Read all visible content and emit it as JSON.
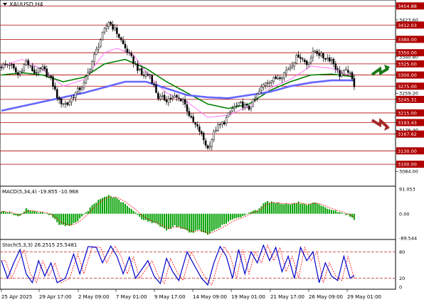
{
  "symbol_label": "XAUUSD,H4",
  "colors": {
    "bull_candle": "#ffffff",
    "bear_candle": "#000000",
    "level_line": "#b00000",
    "level_tag": "#b00000",
    "ma_fast": "#ff66ff",
    "ma_mid": "#008000",
    "ma_slow": "#6666ff",
    "macd_hist": "#00a000",
    "macd_signal": "#ff0000",
    "stoch_main": "#0000cc",
    "stoch_signal": "#ff0000",
    "arrow_up": "#1a7a1a",
    "arrow_down": "#a52a2a"
  },
  "icons": {
    "up_arrow": "zigzag-up-arrow-icon",
    "down_arrow": "zigzag-down-arrow-icon"
  },
  "chart_data": [
    {
      "type": "candlestick",
      "title": "XAUUSD,H4",
      "ylim": [
        3054.0,
        3465.0
      ],
      "price_ticks": [
        3454.88,
        3423.6,
        3412.03,
        3380.0,
        3350.0,
        3340.8,
        3325.0,
        3300.0,
        3275.0,
        3259.2,
        3245.31,
        3215.0,
        3193.43,
        3176.4,
        3167.62,
        3130.0,
        3100.0,
        3084.0
      ],
      "levels": [
        {
          "price": 3454.88,
          "label": "3454.88"
        },
        {
          "price": 3412.03,
          "label": "3412.03"
        },
        {
          "price": 3380.0,
          "label": "3380.00"
        },
        {
          "price": 3350.0,
          "label": "3350.00"
        },
        {
          "price": 3325.0,
          "label": "3325.00"
        },
        {
          "price": 3300.0,
          "label": "3300.00"
        },
        {
          "price": 3275.0,
          "label": "3275.00"
        },
        {
          "price": 3245.31,
          "label": "3245.31"
        },
        {
          "price": 3215.0,
          "label": "3215.00"
        },
        {
          "price": 3193.43,
          "label": "3193.43"
        },
        {
          "price": 3167.62,
          "label": "3167.62"
        },
        {
          "price": 3130.0,
          "label": "3130.00"
        },
        {
          "price": 3100.0,
          "label": "3100.00"
        }
      ],
      "time_labels": [
        "25 Apr 2025",
        "29 Apr 17:00",
        "2 May 09:00",
        "7 May 01:00",
        "9 May 17:00",
        "14 May 09:00",
        "19 May 01:00",
        "21 May 17:00",
        "26 May 09:00",
        "29 May 01:00"
      ],
      "close_anchors": [
        [
          0,
          3320
        ],
        [
          4,
          3325
        ],
        [
          8,
          3300
        ],
        [
          12,
          3330
        ],
        [
          16,
          3305
        ],
        [
          20,
          3315
        ],
        [
          24,
          3290
        ],
        [
          28,
          3240
        ],
        [
          32,
          3235
        ],
        [
          36,
          3260
        ],
        [
          40,
          3280
        ],
        [
          44,
          3330
        ],
        [
          48,
          3380
        ],
        [
          52,
          3420
        ],
        [
          56,
          3395
        ],
        [
          60,
          3360
        ],
        [
          64,
          3330
        ],
        [
          68,
          3300
        ],
        [
          72,
          3300
        ],
        [
          76,
          3250
        ],
        [
          80,
          3245
        ],
        [
          84,
          3250
        ],
        [
          88,
          3245
        ],
        [
          92,
          3200
        ],
        [
          96,
          3175
        ],
        [
          100,
          3135
        ],
        [
          104,
          3180
        ],
        [
          108,
          3195
        ],
        [
          112,
          3225
        ],
        [
          116,
          3235
        ],
        [
          120,
          3225
        ],
        [
          124,
          3255
        ],
        [
          128,
          3285
        ],
        [
          132,
          3290
        ],
        [
          136,
          3300
        ],
        [
          140,
          3320
        ],
        [
          144,
          3345
        ],
        [
          148,
          3325
        ],
        [
          152,
          3355
        ],
        [
          156,
          3340
        ],
        [
          160,
          3335
        ],
        [
          164,
          3300
        ],
        [
          168,
          3310
        ],
        [
          171,
          3278
        ]
      ],
      "moving_averages": [
        {
          "name": "fast",
          "points": [
            [
              0,
              3320
            ],
            [
              10,
              3335
            ],
            [
              20,
              3312
            ],
            [
              30,
              3275
            ],
            [
              40,
              3290
            ],
            [
              50,
              3350
            ],
            [
              56,
              3360
            ],
            [
              64,
              3345
            ],
            [
              72,
              3295
            ],
            [
              80,
              3260
            ],
            [
              90,
              3240
            ],
            [
              100,
              3205
            ],
            [
              110,
              3210
            ],
            [
              120,
              3230
            ],
            [
              130,
              3270
            ],
            [
              140,
              3290
            ],
            [
              150,
              3320
            ],
            [
              160,
              3315
            ],
            [
              171,
              3295
            ]
          ]
        },
        {
          "name": "mid",
          "points": [
            [
              0,
              3300
            ],
            [
              10,
              3305
            ],
            [
              20,
              3300
            ],
            [
              30,
              3285
            ],
            [
              40,
              3295
            ],
            [
              50,
              3325
            ],
            [
              60,
              3335
            ],
            [
              70,
              3315
            ],
            [
              80,
              3285
            ],
            [
              90,
              3260
            ],
            [
              100,
              3235
            ],
            [
              110,
              3225
            ],
            [
              120,
              3235
            ],
            [
              130,
              3265
            ],
            [
              140,
              3285
            ],
            [
              150,
              3300
            ],
            [
              160,
              3302
            ],
            [
              171,
              3296
            ]
          ]
        },
        {
          "name": "slow",
          "points": [
            [
              0,
              3220
            ],
            [
              20,
              3240
            ],
            [
              40,
              3260
            ],
            [
              60,
              3285
            ],
            [
              70,
              3285
            ],
            [
              80,
              3270
            ],
            [
              90,
              3255
            ],
            [
              100,
              3250
            ],
            [
              110,
              3248
            ],
            [
              120,
              3255
            ],
            [
              130,
              3262
            ],
            [
              140,
              3275
            ],
            [
              150,
              3283
            ],
            [
              160,
              3288
            ],
            [
              171,
              3288
            ]
          ]
        }
      ]
    },
    {
      "type": "bar",
      "title": "MACD(5,34,4) -19.855 -10.968",
      "ylim": [
        -89.544,
        91.053
      ],
      "tick_labels": [
        "91.053",
        "0.00",
        "-89.544"
      ],
      "hist_anchors": [
        [
          0,
          10
        ],
        [
          4,
          5
        ],
        [
          8,
          -12
        ],
        [
          12,
          18
        ],
        [
          16,
          8
        ],
        [
          20,
          5
        ],
        [
          24,
          -5
        ],
        [
          28,
          -40
        ],
        [
          32,
          -45
        ],
        [
          36,
          -32
        ],
        [
          40,
          -5
        ],
        [
          44,
          30
        ],
        [
          48,
          55
        ],
        [
          52,
          68
        ],
        [
          56,
          55
        ],
        [
          60,
          35
        ],
        [
          64,
          10
        ],
        [
          68,
          -18
        ],
        [
          72,
          -30
        ],
        [
          76,
          -40
        ],
        [
          80,
          -60
        ],
        [
          84,
          -45
        ],
        [
          88,
          -55
        ],
        [
          92,
          -70
        ],
        [
          96,
          -60
        ],
        [
          100,
          -78
        ],
        [
          104,
          -55
        ],
        [
          108,
          -40
        ],
        [
          112,
          -20
        ],
        [
          116,
          -15
        ],
        [
          120,
          5
        ],
        [
          124,
          15
        ],
        [
          128,
          45
        ],
        [
          132,
          42
        ],
        [
          136,
          38
        ],
        [
          140,
          35
        ],
        [
          144,
          42
        ],
        [
          148,
          30
        ],
        [
          152,
          40
        ],
        [
          156,
          25
        ],
        [
          160,
          15
        ],
        [
          164,
          5
        ],
        [
          168,
          -5
        ],
        [
          171,
          -19.855
        ]
      ],
      "signal_value": -10.968
    },
    {
      "type": "line",
      "title": "Stoch(5,3,3) 26.2515 25.5481",
      "ylim": [
        0,
        100
      ],
      "tick_labels": [
        "80",
        "20",
        "0"
      ],
      "levels": [
        80,
        20
      ],
      "main_anchors": [
        [
          0,
          60
        ],
        [
          3,
          20
        ],
        [
          6,
          55
        ],
        [
          9,
          85
        ],
        [
          12,
          30
        ],
        [
          15,
          10
        ],
        [
          18,
          60
        ],
        [
          21,
          25
        ],
        [
          24,
          55
        ],
        [
          27,
          10
        ],
        [
          31,
          20
        ],
        [
          35,
          75
        ],
        [
          38,
          30
        ],
        [
          42,
          92
        ],
        [
          46,
          90
        ],
        [
          49,
          55
        ],
        [
          53,
          93
        ],
        [
          56,
          70
        ],
        [
          59,
          30
        ],
        [
          62,
          68
        ],
        [
          65,
          20
        ],
        [
          68,
          40
        ],
        [
          71,
          60
        ],
        [
          74,
          25
        ],
        [
          77,
          8
        ],
        [
          80,
          65
        ],
        [
          83,
          35
        ],
        [
          86,
          15
        ],
        [
          90,
          80
        ],
        [
          94,
          45
        ],
        [
          97,
          20
        ],
        [
          100,
          5
        ],
        [
          103,
          55
        ],
        [
          106,
          92
        ],
        [
          109,
          70
        ],
        [
          112,
          20
        ],
        [
          115,
          85
        ],
        [
          118,
          30
        ],
        [
          121,
          80
        ],
        [
          124,
          55
        ],
        [
          127,
          95
        ],
        [
          130,
          60
        ],
        [
          133,
          90
        ],
        [
          136,
          35
        ],
        [
          139,
          70
        ],
        [
          142,
          20
        ],
        [
          145,
          90
        ],
        [
          148,
          60
        ],
        [
          151,
          80
        ],
        [
          154,
          10
        ],
        [
          157,
          55
        ],
        [
          160,
          25
        ],
        [
          163,
          15
        ],
        [
          166,
          70
        ],
        [
          169,
          20
        ],
        [
          171,
          26.25
        ]
      ],
      "signal_lag": 2
    }
  ]
}
